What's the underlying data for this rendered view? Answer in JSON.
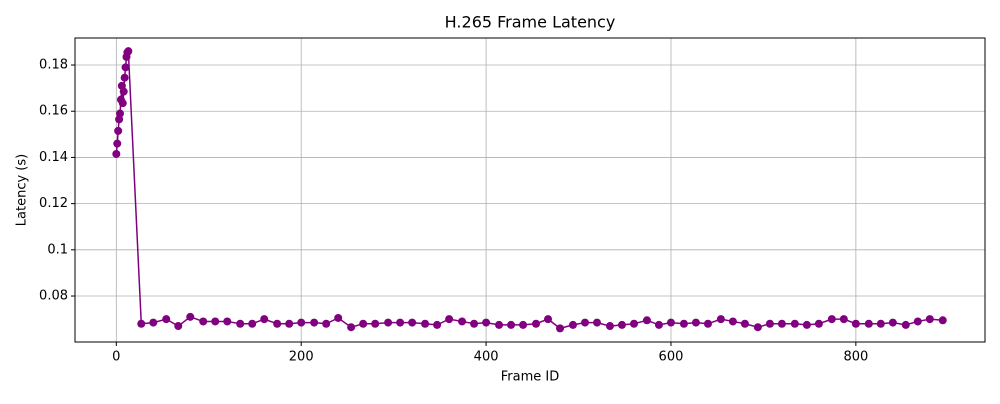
{
  "chart_data": {
    "type": "line",
    "title": "H.265 Frame Latency",
    "x_label": "Frame ID",
    "y_label": "Latency (s)",
    "x": [
      0,
      1,
      2,
      3,
      4,
      5,
      6,
      7,
      8,
      9,
      10,
      11,
      12,
      13,
      27,
      40,
      54,
      67,
      80,
      94,
      107,
      120,
      134,
      147,
      160,
      174,
      187,
      200,
      214,
      227,
      240,
      254,
      267,
      280,
      294,
      307,
      320,
      334,
      347,
      360,
      374,
      387,
      400,
      414,
      427,
      440,
      454,
      467,
      480,
      494,
      507,
      520,
      534,
      547,
      560,
      574,
      587,
      600,
      614,
      627,
      640,
      654,
      667,
      680,
      694,
      707,
      720,
      734,
      747,
      760,
      774,
      787,
      800,
      814,
      827,
      840,
      854,
      867,
      880,
      894
    ],
    "series": [
      {
        "name": "Latency",
        "color": "#800080",
        "values": [
          0.1415,
          0.146,
          0.1515,
          0.1565,
          0.159,
          0.165,
          0.171,
          0.1635,
          0.1685,
          0.1745,
          0.179,
          0.1835,
          0.1855,
          0.186,
          0.068,
          0.0685,
          0.07,
          0.067,
          0.071,
          0.069,
          0.069,
          0.069,
          0.068,
          0.068,
          0.07,
          0.068,
          0.068,
          0.0685,
          0.0685,
          0.068,
          0.0705,
          0.0665,
          0.068,
          0.068,
          0.0685,
          0.0685,
          0.0685,
          0.068,
          0.0675,
          0.07,
          0.069,
          0.068,
          0.0685,
          0.0675,
          0.0675,
          0.0675,
          0.068,
          0.07,
          0.066,
          0.0675,
          0.0685,
          0.0685,
          0.067,
          0.0675,
          0.068,
          0.0695,
          0.0675,
          0.0685,
          0.068,
          0.0685,
          0.068,
          0.07,
          0.069,
          0.068,
          0.0665,
          0.068,
          0.068,
          0.068,
          0.0675,
          0.068,
          0.07,
          0.07,
          0.068,
          0.068,
          0.068,
          0.0685,
          0.0675,
          0.069,
          0.07,
          0.0695
        ]
      }
    ],
    "xlim": [
      -44.7,
      939.7
    ],
    "ylim": [
      0.0601,
      0.1917
    ],
    "xticks": [
      0,
      200,
      400,
      600,
      800
    ],
    "yticks": [
      0.08,
      0.1,
      0.12,
      0.14,
      0.16,
      0.18
    ],
    "grid": true
  }
}
